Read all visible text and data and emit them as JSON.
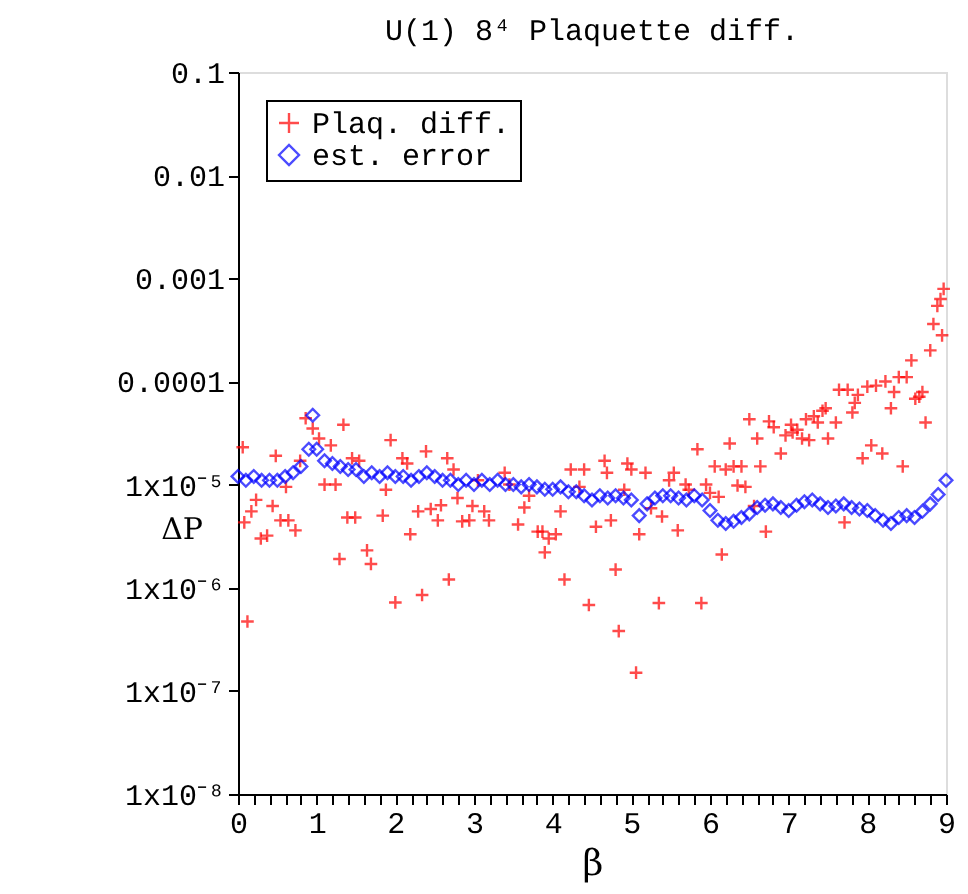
{
  "chart_data": {
    "type": "scatter",
    "title": "U(1) 8⁴ Plaquette diff.",
    "xlabel": "β",
    "ylabel": "ΔP",
    "log": "y",
    "grid": false,
    "legend": "top left",
    "xlim": [
      0,
      9
    ],
    "ylim": [
      1e-08,
      0.1
    ],
    "xticks": [
      0,
      {
        "value": 0.2,
        "label": null
      },
      {
        "value": 0.4,
        "label": null
      },
      {
        "value": 0.6,
        "label": null
      },
      {
        "value": 0.8,
        "label": null
      },
      1,
      {
        "value": 1.2,
        "label": null
      },
      {
        "value": 1.4,
        "label": null
      },
      {
        "value": 1.6,
        "label": null
      },
      {
        "value": 1.8,
        "label": null
      },
      2,
      {
        "value": 2.2,
        "label": null
      },
      {
        "value": 2.4,
        "label": null
      },
      {
        "value": 2.6,
        "label": null
      },
      {
        "value": 2.8,
        "label": null
      },
      3,
      {
        "value": 3.2,
        "label": null
      },
      {
        "value": 3.4,
        "label": null
      },
      {
        "value": 3.6,
        "label": null
      },
      {
        "value": 3.8,
        "label": null
      },
      4,
      {
        "value": 4.2,
        "label": null
      },
      {
        "value": 4.4,
        "label": null
      },
      {
        "value": 4.6,
        "label": null
      },
      {
        "value": 4.8,
        "label": null
      },
      5,
      {
        "value": 5.2,
        "label": null
      },
      {
        "value": 5.4,
        "label": null
      },
      {
        "value": 5.6,
        "label": null
      },
      {
        "value": 5.8,
        "label": null
      },
      6,
      {
        "value": 6.2,
        "label": null
      },
      {
        "value": 6.4,
        "label": null
      },
      {
        "value": 6.6,
        "label": null
      },
      {
        "value": 6.8,
        "label": null
      },
      7,
      {
        "value": 7.2,
        "label": null
      },
      {
        "value": 7.4,
        "label": null
      },
      {
        "value": 7.6,
        "label": null
      },
      {
        "value": 7.8,
        "label": null
      },
      8,
      {
        "value": 8.2,
        "label": null
      },
      {
        "value": 8.4,
        "label": null
      },
      {
        "value": 8.6,
        "label": null
      },
      {
        "value": 8.8,
        "label": null
      },
      9
    ],
    "yticks": [
      {
        "value": 1e-08,
        "label": "1x10⁻⁸"
      },
      {
        "value": 1e-07,
        "label": "1x10⁻⁷"
      },
      {
        "value": 1e-06,
        "label": "1x10⁻⁶"
      },
      {
        "value": 1e-05,
        "label": "1x10⁻⁵"
      },
      0.0001,
      0.001,
      0.01,
      0.1
    ],
    "series": [
      {
        "name": "Plaq. diff.",
        "color": "#ff0000",
        "marker": "cross",
        "x": [
          0.06,
          0.08,
          0.12,
          0.17,
          0.23,
          0.29,
          0.37,
          0.44,
          0.48,
          0.54,
          0.61,
          0.64,
          0.73,
          0.79,
          0.86,
          0.95,
          1.03,
          1.1,
          1.18,
          1.24,
          1.29,
          1.34,
          1.39,
          1.45,
          1.49,
          1.54,
          1.64,
          1.69,
          1.84,
          1.88,
          1.94,
          2.0,
          2.09,
          2.15,
          2.19,
          2.29,
          2.34,
          2.39,
          2.45,
          2.54,
          2.58,
          2.66,
          2.68,
          2.74,
          2.79,
          2.85,
          2.94,
          2.98,
          3.05,
          3.13,
          3.19,
          3.39,
          3.45,
          3.56,
          3.64,
          3.7,
          3.81,
          3.87,
          3.9,
          3.95,
          4.04,
          4.1,
          4.15,
          4.23,
          4.34,
          4.4,
          4.46,
          4.55,
          4.66,
          4.69,
          4.74,
          4.8,
          4.84,
          4.91,
          4.95,
          5.0,
          5.06,
          5.1,
          5.18,
          5.25,
          5.35,
          5.39,
          5.48,
          5.54,
          5.59,
          5.69,
          5.73,
          5.84,
          5.89,
          5.95,
          6.0,
          6.06,
          6.11,
          6.15,
          6.2,
          6.25,
          6.3,
          6.35,
          6.4,
          6.45,
          6.5,
          6.56,
          6.6,
          6.64,
          6.71,
          6.75,
          6.81,
          6.9,
          6.96,
          7.03,
          7.05,
          7.11,
          7.17,
          7.22,
          7.26,
          7.32,
          7.37,
          7.43,
          7.47,
          7.5,
          7.6,
          7.64,
          7.71,
          7.75,
          7.81,
          7.84,
          7.88,
          7.94,
          8.0,
          8.05,
          8.11,
          8.19,
          8.23,
          8.3,
          8.34,
          8.4,
          8.45,
          8.5,
          8.56,
          8.61,
          8.66,
          8.7,
          8.74,
          8.8,
          8.84,
          8.89,
          8.93,
          8.95,
          8.97
        ],
        "values": [
          2.3e-05,
          4.3e-06,
          4.7e-07,
          5.5e-06,
          7.1e-06,
          3e-06,
          3.2e-06,
          6.2e-06,
          1.9e-05,
          4.5e-06,
          9.5e-06,
          4.5e-06,
          3.6e-06,
          1.7e-05,
          4.4e-05,
          3.5e-05,
          2.8e-05,
          1e-05,
          2.4e-05,
          1e-05,
          1.9e-06,
          3.8e-05,
          4.8e-06,
          1.8e-05,
          4.8e-06,
          1.7e-05,
          2.3e-06,
          1.7e-06,
          5e-06,
          8.9e-06,
          2.7e-05,
          7.2e-07,
          1.8e-05,
          1.6e-05,
          3.3e-06,
          5.5e-06,
          8.5e-07,
          2.1e-05,
          5.8e-06,
          4.5e-06,
          6.3e-06,
          1.8e-05,
          1.2e-06,
          1.4e-05,
          7.4e-06,
          4.4e-06,
          4.5e-06,
          6.2e-06,
          1.1e-05,
          5.5e-06,
          4.5e-06,
          1.3e-05,
          1e-05,
          4.1e-06,
          6e-06,
          7.8e-06,
          3.5e-06,
          3.5e-06,
          2.2e-06,
          3e-06,
          3.3e-06,
          5.5e-06,
          1.2e-06,
          1.4e-05,
          9.5e-06,
          1.4e-05,
          6.8e-07,
          3.9e-06,
          1.7e-05,
          1.3e-05,
          4.5e-06,
          1.5e-06,
          3.8e-07,
          8.9e-06,
          1.6e-05,
          1.4e-05,
          1.5e-07,
          3.3e-06,
          1.3e-05,
          5.9e-06,
          7.1e-07,
          4.9e-06,
          1.1e-05,
          1.3e-05,
          3.6e-06,
          1e-05,
          8.9e-06,
          2.2e-05,
          7.1e-07,
          1e-05,
          8.3e-06,
          1.5e-05,
          7.6e-06,
          2.1e-06,
          1.4e-05,
          2.5e-05,
          1.5e-05,
          9.8e-06,
          1.5e-05,
          9.5e-06,
          4.3e-05,
          6.2e-06,
          2.8e-05,
          1.5e-05,
          3.5e-06,
          4.1e-05,
          3.6e-05,
          2e-05,
          3e-05,
          3.8e-05,
          3.2e-05,
          3.4e-05,
          2.8e-05,
          4.3e-05,
          2.7e-05,
          4.6e-05,
          4e-05,
          5.2e-05,
          5.5e-05,
          2.8e-05,
          4e-05,
          8.3e-05,
          4.3e-06,
          8.3e-05,
          5e-05,
          6.2e-05,
          7.4e-05,
          1.8e-05,
          8.9e-05,
          2.4e-05,
          9.1e-05,
          2e-05,
          0.0001,
          5.5e-05,
          7.9e-05,
          0.00011,
          1.5e-05,
          0.00011,
          0.00016,
          6.8e-05,
          7.1e-05,
          7.9e-05,
          4e-05,
          0.0002,
          0.00036,
          0.00054,
          0.00063,
          0.00028,
          0.00079
        ]
      },
      {
        "name": "est. error",
        "color": "#0000ff",
        "marker": "diamond",
        "x": [
          0.0,
          0.1,
          0.2,
          0.3,
          0.4,
          0.5,
          0.6,
          0.7,
          0.8,
          0.9,
          0.95,
          1.0,
          1.1,
          1.2,
          1.3,
          1.4,
          1.5,
          1.6,
          1.7,
          1.8,
          1.9,
          2.0,
          2.1,
          2.2,
          2.3,
          2.4,
          2.5,
          2.6,
          2.7,
          2.8,
          2.9,
          3.0,
          3.1,
          3.2,
          3.3,
          3.4,
          3.5,
          3.6,
          3.7,
          3.8,
          3.9,
          4.0,
          4.1,
          4.2,
          4.3,
          4.4,
          4.5,
          4.6,
          4.7,
          4.8,
          4.9,
          5.0,
          5.1,
          5.2,
          5.3,
          5.4,
          5.5,
          5.6,
          5.7,
          5.8,
          5.9,
          6.0,
          6.1,
          6.2,
          6.3,
          6.4,
          6.5,
          6.6,
          6.7,
          6.8,
          6.9,
          7.0,
          7.1,
          7.2,
          7.3,
          7.4,
          7.5,
          7.6,
          7.7,
          7.8,
          7.9,
          8.0,
          8.1,
          8.2,
          8.3,
          8.4,
          8.5,
          8.6,
          8.7,
          8.8,
          8.9,
          9.0
        ],
        "values": [
          1.2e-05,
          1.1e-05,
          1.2e-05,
          1.1e-05,
          1.1e-05,
          1.1e-05,
          1.2e-05,
          1.3e-05,
          1.5e-05,
          2.2e-05,
          4.7e-05,
          2.2e-05,
          1.7e-05,
          1.6e-05,
          1.5e-05,
          1.4e-05,
          1.4e-05,
          1.2e-05,
          1.3e-05,
          1.2e-05,
          1.3e-05,
          1.2e-05,
          1.2e-05,
          1.1e-05,
          1.2e-05,
          1.3e-05,
          1.2e-05,
          1.1e-05,
          1.1e-05,
          1e-05,
          1.1e-05,
          1e-05,
          1.1e-05,
          1e-05,
          1.1e-05,
          1e-05,
          1e-05,
          9.5e-06,
          1e-05,
          9.5e-06,
          9e-06,
          9e-06,
          9.5e-06,
          8.5e-06,
          8.5e-06,
          7.8e-06,
          7.1e-06,
          7.8e-06,
          7.4e-06,
          7.8e-06,
          7.4e-06,
          7.1e-06,
          5e-06,
          6.5e-06,
          7.4e-06,
          7.8e-06,
          7.8e-06,
          7.4e-06,
          7.1e-06,
          7.8e-06,
          7.1e-06,
          5.6e-06,
          4.5e-06,
          4.2e-06,
          4.4e-06,
          4.8e-06,
          5.2e-06,
          6e-06,
          6.3e-06,
          6.5e-06,
          6e-06,
          5.6e-06,
          6.3e-06,
          6.8e-06,
          7.1e-06,
          6.5e-06,
          6e-06,
          6.2e-06,
          6.5e-06,
          6e-06,
          5.8e-06,
          5.6e-06,
          5e-06,
          4.5e-06,
          4.2e-06,
          4.8e-06,
          5e-06,
          4.8e-06,
          5.5e-06,
          6.5e-06,
          8e-06,
          1.1e-05
        ]
      }
    ]
  }
}
